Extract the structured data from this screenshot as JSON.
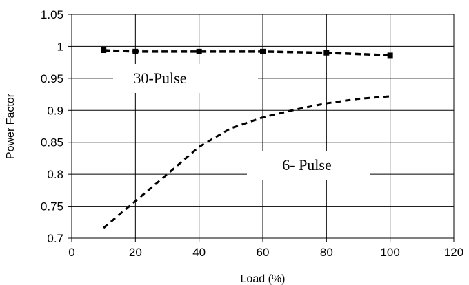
{
  "chart_data": {
    "type": "line",
    "xlabel": "Load (%)",
    "ylabel": "Power Factor",
    "xlim": [
      0,
      120
    ],
    "ylim": [
      0.7,
      1.05
    ],
    "x_ticks": [
      "0",
      "20",
      "40",
      "60",
      "80",
      "100",
      "120"
    ],
    "y_ticks": [
      "0.7",
      "0.75",
      "0.8",
      "0.85",
      "0.9",
      "0.95",
      "1",
      "1.05"
    ],
    "grid": true,
    "series": [
      {
        "name": "30-Pulse",
        "x": [
          10,
          20,
          40,
          60,
          80,
          100
        ],
        "y": [
          0.994,
          0.992,
          0.992,
          0.992,
          0.99,
          0.986
        ],
        "marker": "square",
        "color": "#000000"
      },
      {
        "name": "6- Pulse",
        "x": [
          10,
          20,
          30,
          40,
          50,
          60,
          70,
          80,
          90,
          100
        ],
        "y": [
          0.716,
          0.758,
          0.8,
          0.843,
          0.872,
          0.889,
          0.901,
          0.911,
          0.918,
          0.922
        ],
        "marker": "none",
        "color": "#000000"
      }
    ]
  }
}
